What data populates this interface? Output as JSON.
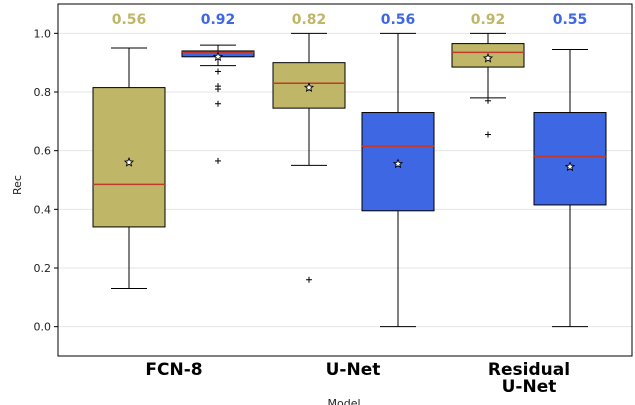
{
  "chart_data": {
    "type": "box",
    "ylabel": "Rec",
    "xlabel": "Model",
    "ylim": [
      -0.1,
      1.1
    ],
    "yticks": [
      0.0,
      0.2,
      0.4,
      0.6,
      0.8,
      1.0
    ],
    "ytick_labels": [
      "0.0",
      "0.2",
      "0.4",
      "0.6",
      "0.8",
      "1.0"
    ],
    "grid": "horizontal",
    "groups": [
      {
        "label_lines": [
          "FCN-8"
        ]
      },
      {
        "label_lines": [
          "U-Net"
        ]
      },
      {
        "label_lines": [
          "Residual",
          "U-Net"
        ]
      }
    ],
    "colors": {
      "olive": "#bfb767",
      "blue": "#3d67e3",
      "median": "#c0392b"
    },
    "boxes": [
      {
        "group": 0,
        "color": "olive",
        "whislo": 0.13,
        "q1": 0.34,
        "med": 0.485,
        "q3": 0.815,
        "whishi": 0.95,
        "mean": 0.56,
        "mean_label": "0.56",
        "fliers": []
      },
      {
        "group": 0,
        "color": "blue",
        "whislo": 0.89,
        "q1": 0.92,
        "med": 0.935,
        "q3": 0.94,
        "whishi": 0.96,
        "mean": 0.92,
        "mean_label": "0.92",
        "fliers": [
          0.87,
          0.82,
          0.81,
          0.76,
          0.565
        ]
      },
      {
        "group": 1,
        "color": "olive",
        "whislo": 0.55,
        "q1": 0.745,
        "med": 0.83,
        "q3": 0.9,
        "whishi": 1.0,
        "mean": 0.815,
        "mean_label": "0.82",
        "fliers": [
          0.16
        ]
      },
      {
        "group": 1,
        "color": "blue",
        "whislo": 0.0,
        "q1": 0.395,
        "med": 0.615,
        "q3": 0.73,
        "whishi": 1.0,
        "mean": 0.555,
        "mean_label": "0.56",
        "fliers": []
      },
      {
        "group": 2,
        "color": "olive",
        "whislo": 0.78,
        "q1": 0.885,
        "med": 0.935,
        "q3": 0.965,
        "whishi": 1.0,
        "mean": 0.915,
        "mean_label": "0.92",
        "fliers": [
          0.77,
          0.655
        ]
      },
      {
        "group": 2,
        "color": "blue",
        "whislo": 0.0,
        "q1": 0.415,
        "med": 0.58,
        "q3": 0.73,
        "whishi": 0.945,
        "mean": 0.545,
        "mean_label": "0.55",
        "fliers": []
      }
    ]
  }
}
